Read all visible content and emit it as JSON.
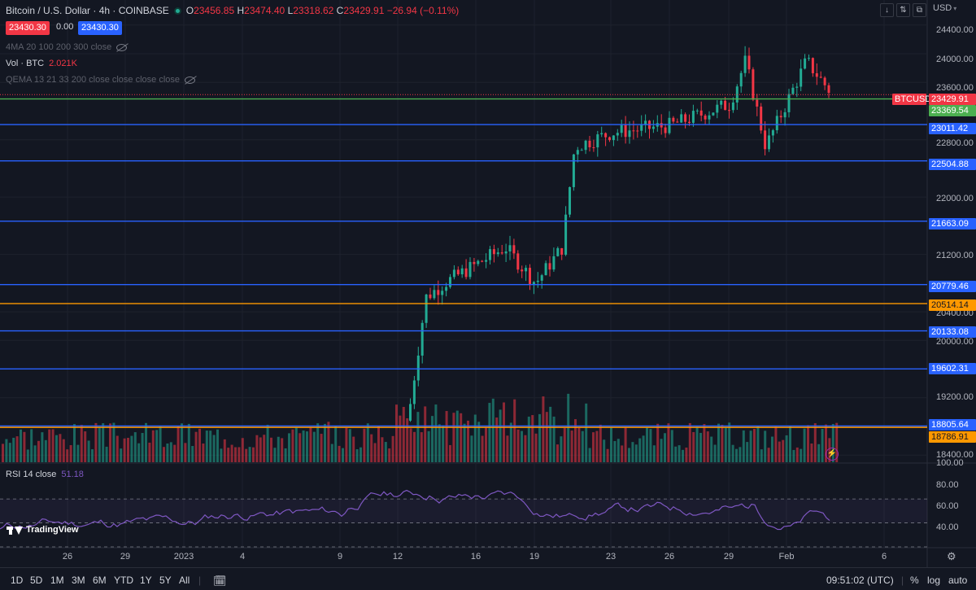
{
  "header": {
    "symbol_title": "Bitcoin / U.S. Dollar · 4h · COINBASE",
    "ohlc": [
      {
        "key": "O",
        "value": "23456.85"
      },
      {
        "key": "H",
        "value": "23474.40"
      },
      {
        "key": "L",
        "value": "23318.62"
      },
      {
        "key": "C",
        "value": "23429.91"
      }
    ],
    "change": "−26.94 (−0.11%)",
    "sell_price": "23430.30",
    "spread": "0.00",
    "buy_price": "23430.30",
    "ma_legend": "4MA 20 100 200 300 close",
    "vol_label": "Vol · BTC",
    "vol_value": "2.021K",
    "qema_legend": "QEMA 13 21 33 200 close close close close",
    "status_icon": "market-open-dot-icon"
  },
  "top_buttons": [
    "↓",
    "⇅",
    "⧉"
  ],
  "price_axis": {
    "currency": "USD",
    "labels": [
      "24400.00",
      "24000.00",
      "23600.00",
      "22800.00",
      "22000.00",
      "21200.00",
      "20400.00",
      "20000.00",
      "19200.00",
      "18400.00"
    ]
  },
  "horizontal_levels": [
    {
      "label": "23011.42",
      "color": "#2962ff"
    },
    {
      "label": "22504.88",
      "color": "#2962ff"
    },
    {
      "label": "21663.09",
      "color": "#2962ff"
    },
    {
      "label": "20779.46",
      "color": "#2962ff"
    },
    {
      "label": "20514.14",
      "color": "#ff9800"
    },
    {
      "label": "20133.08",
      "color": "#2962ff"
    },
    {
      "label": "19602.31",
      "color": "#2962ff"
    },
    {
      "label": "18805.64",
      "color": "#2962ff"
    },
    {
      "label": "18786.91",
      "color": "#ff9800"
    }
  ],
  "price_tags": {
    "symbol": "BTCUSD",
    "last": "23429.91",
    "level_green": "23369.54"
  },
  "rsi": {
    "label": "RSI 14 close",
    "value": "51.18",
    "axis": [
      "100.00",
      "80.00",
      "60.00",
      "40.00"
    ]
  },
  "time_axis": {
    "labels": [
      "26",
      "29",
      "2023",
      "4",
      "9",
      "12",
      "16",
      "19",
      "23",
      "26",
      "29",
      "Feb",
      "6"
    ]
  },
  "ranges": [
    "1D",
    "5D",
    "1M",
    "3M",
    "6M",
    "YTD",
    "1Y",
    "5Y",
    "All"
  ],
  "bottom_right": {
    "clock": "09:51:02 (UTC)",
    "percent": "%",
    "log": "log",
    "auto": "auto"
  },
  "branding": "TradingView",
  "colors": {
    "up": "#22ab94",
    "down": "#f23645",
    "blue_level": "#2962ff",
    "orange_level": "#ff9800",
    "green_level": "#4caf50",
    "rsi": "#7e57c2"
  },
  "chart_data": {
    "type": "candlestick",
    "symbol": "BTCUSD",
    "interval": "4h",
    "key_points": [
      {
        "date": "Jan 12",
        "price": 18900
      },
      {
        "date": "Jan 13",
        "price": 20600
      },
      {
        "date": "Jan 14",
        "price": 20800
      },
      {
        "date": "Jan 17",
        "price": 21300
      },
      {
        "date": "Jan 19",
        "price": 20800
      },
      {
        "date": "Jan 20",
        "price": 21300
      },
      {
        "date": "Jan 21",
        "price": 22700
      },
      {
        "date": "Jan 23",
        "price": 22900
      },
      {
        "date": "Jan 26",
        "price": 23000
      },
      {
        "date": "Jan 29",
        "price": 23300
      },
      {
        "date": "Jan 30",
        "price": 23900
      },
      {
        "date": "Jan 31",
        "price": 22700
      },
      {
        "date": "Feb 2",
        "price": 23900
      },
      {
        "date": "Feb 3",
        "price": 23430
      }
    ],
    "last_close": 23429.91,
    "ylim": [
      18300,
      24500
    ],
    "rsi_range": [
      30,
      100
    ],
    "rsi_last": 51.18
  }
}
